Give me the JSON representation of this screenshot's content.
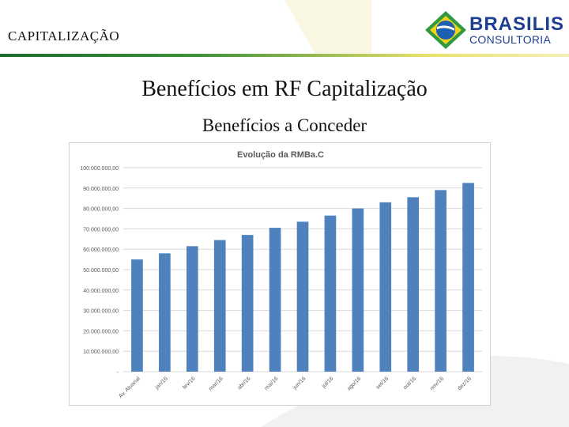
{
  "header": {
    "section_title": "CAPITALIZAÇÃO"
  },
  "logo": {
    "name": "BRASILIS",
    "subtitle": "CONSULTORIA"
  },
  "slide": {
    "title": "Benefícios em RF Capitalização",
    "subtitle": "Benefícios a Conceder"
  },
  "colors": {
    "bar": "#4f81bd",
    "grid": "#d9d9d9",
    "text": "#595959",
    "accent_green": "#3f8f3a",
    "accent_yellow": "#e7e16b",
    "logo_blue": "#1d3f8f"
  },
  "chart_data": {
    "type": "bar",
    "title": "Evolução da RMBa.C",
    "categories": [
      "Av. Atuarial",
      "jan/16",
      "fev/16",
      "mar/16",
      "abr/16",
      "mai/16",
      "jun/16",
      "jul/16",
      "ago/16",
      "set/16",
      "out/16",
      "nov/16",
      "dez/16"
    ],
    "values": [
      55000000,
      58000000,
      61500000,
      64500000,
      67000000,
      70500000,
      73500000,
      76500000,
      80000000,
      83000000,
      85500000,
      89000000,
      92500000
    ],
    "ylim": [
      0,
      100000000
    ],
    "yticks": [
      0,
      10000000,
      20000000,
      30000000,
      40000000,
      50000000,
      60000000,
      70000000,
      80000000,
      90000000,
      100000000
    ],
    "ytick_labels": [
      "-",
      "10.000.000,00",
      "20.000.000,00",
      "30.000.000,00",
      "40.000.000,00",
      "50.000.000,00",
      "60.000.000,00",
      "70.000.000,00",
      "80.000.000,00",
      "90.000.000,00",
      "100.000.000,00"
    ],
    "grid": true,
    "xlabel": "",
    "ylabel": ""
  }
}
